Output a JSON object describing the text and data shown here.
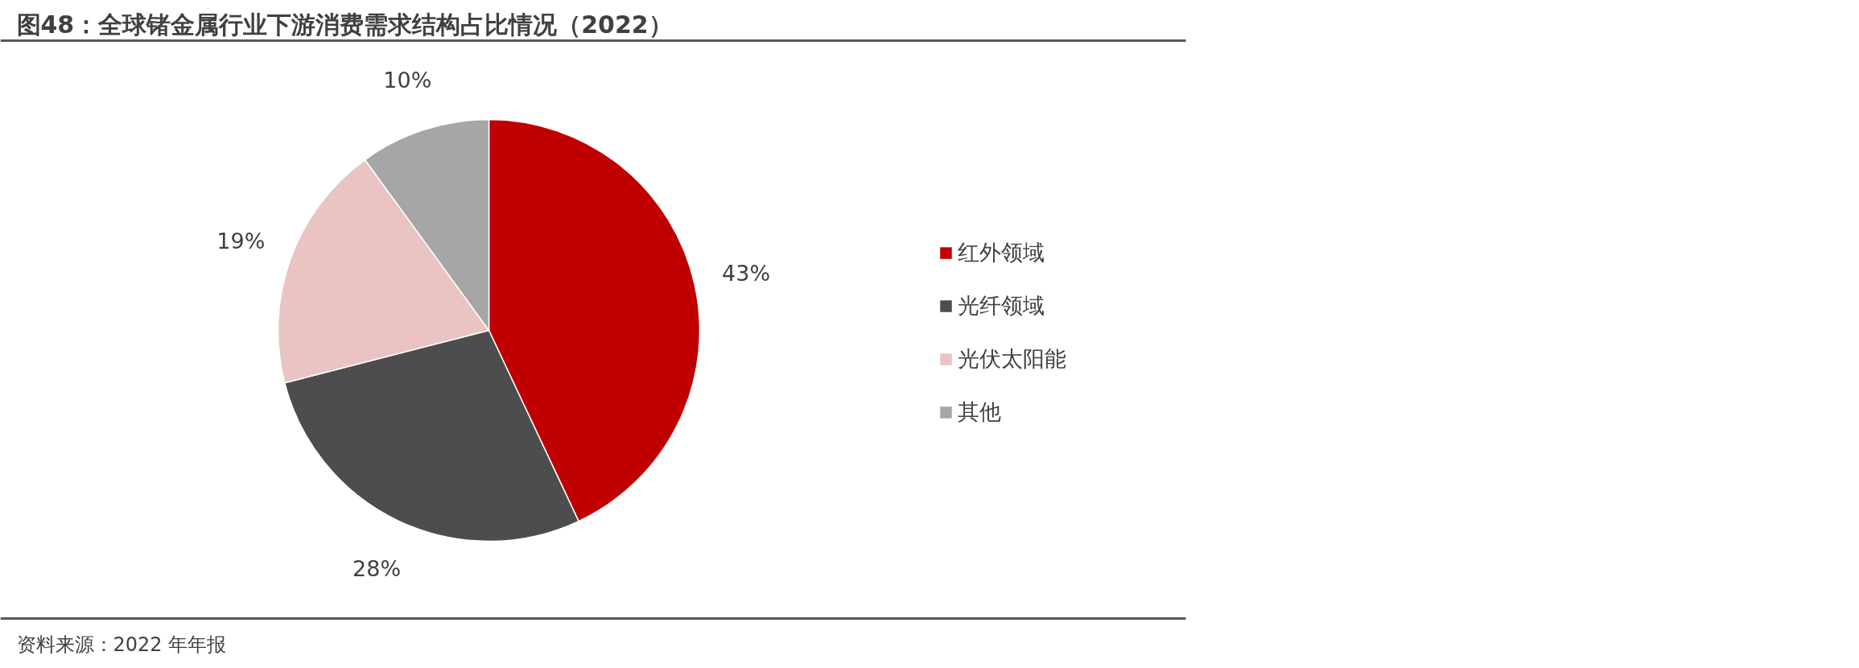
{
  "chart_data": {
    "type": "pie",
    "title": "图48：全球锗金属行业下游消费需求结构占比情况（2022）",
    "categories": [
      "红外领域",
      "光纤领域",
      "光伏太阳能",
      "其他"
    ],
    "values": [
      43,
      28,
      19,
      10
    ],
    "colors": [
      "#c00000",
      "#4d4d4f",
      "#eac3c3",
      "#a6a6a6"
    ],
    "value_labels": [
      "43%",
      "28%",
      "19%",
      "10%"
    ],
    "legend": "right",
    "annotations": [
      "资料来源：2022 年年报"
    ]
  }
}
